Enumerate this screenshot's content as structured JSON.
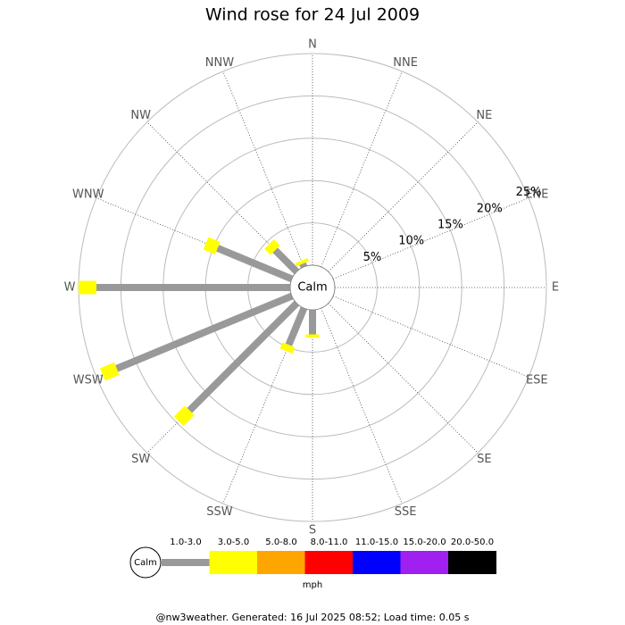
{
  "chart_data": {
    "type": "windrose",
    "title": "Wind rose for 24 Jul 2009",
    "center_label": "Calm",
    "categories": [
      "N",
      "NNE",
      "NE",
      "ENE",
      "E",
      "ESE",
      "SE",
      "SSE",
      "S",
      "SSW",
      "SW",
      "WSW",
      "W",
      "WNW",
      "NW",
      "NNW"
    ],
    "rlim": [
      0,
      25
    ],
    "rticks": [
      {
        "value": 5,
        "label": "5%"
      },
      {
        "value": 10,
        "label": "10%"
      },
      {
        "value": 15,
        "label": "15%"
      },
      {
        "value": 20,
        "label": "20%"
      },
      {
        "value": 25,
        "label": "25%"
      }
    ],
    "series": [
      {
        "name": "1.0-3.0",
        "color": "#999999",
        "values": [
          0,
          0,
          0,
          0,
          0,
          0,
          0,
          0,
          2.9,
          4.7,
          17.9,
          22.4,
          22.9,
          9.5,
          3.6,
          0.4
        ]
      },
      {
        "name": "3.0-5.0",
        "color": "#ffff00",
        "values": [
          0,
          0,
          0,
          0,
          0,
          0,
          0,
          0,
          0.4,
          0.8,
          1.8,
          1.8,
          2.1,
          1.5,
          1.0,
          0.4
        ]
      },
      {
        "name": "5.0-8.0",
        "color": "#ffa500",
        "values": [
          0,
          0,
          0,
          0,
          0,
          0,
          0,
          0,
          0,
          0,
          0,
          0,
          0,
          0,
          0,
          0
        ]
      },
      {
        "name": "8.0-11.0",
        "color": "#ff0000",
        "values": [
          0,
          0,
          0,
          0,
          0,
          0,
          0,
          0,
          0,
          0,
          0,
          0,
          0,
          0,
          0,
          0
        ]
      },
      {
        "name": "11.0-15.0",
        "color": "#0000ff",
        "values": [
          0,
          0,
          0,
          0,
          0,
          0,
          0,
          0,
          0,
          0,
          0,
          0,
          0,
          0,
          0,
          0
        ]
      },
      {
        "name": "15.0-20.0",
        "color": "#a020f0",
        "values": [
          0,
          0,
          0,
          0,
          0,
          0,
          0,
          0,
          0,
          0,
          0,
          0,
          0,
          0,
          0,
          0
        ]
      },
      {
        "name": "20.0-50.0",
        "color": "#000000",
        "values": [
          0,
          0,
          0,
          0,
          0,
          0,
          0,
          0,
          0,
          0,
          0,
          0,
          0,
          0,
          0,
          0
        ]
      }
    ],
    "legend_unit": "mph",
    "footer": "@nw3weather.  Generated: 16 Jul 2025 08:52; Load time: 0.05 s"
  }
}
